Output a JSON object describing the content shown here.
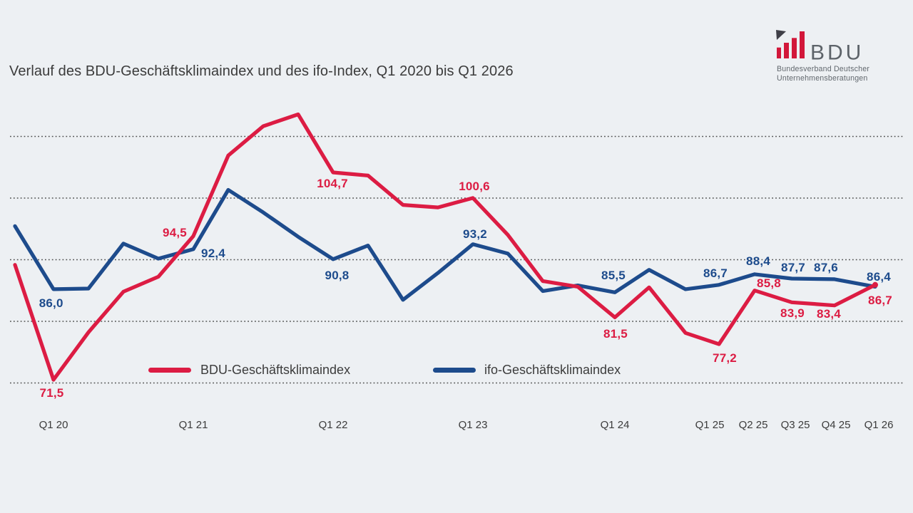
{
  "page": {
    "background_color": "#edf0f3"
  },
  "header": {
    "title": "Verlauf des BDU-Geschäftsklimaindex und des ifo-Index, Q1 2020 bis Q1 2026"
  },
  "logo": {
    "acronym": "BDU",
    "subtitle_line1": "Bundesverband Deutscher",
    "subtitle_line2": "Unternehmensberatungen",
    "bar_color": "#d2173a",
    "flag_color": "#3f3f47",
    "text_color": "#5d6369",
    "subtitle_color": "#62686e"
  },
  "legend": [
    {
      "label": "BDU-Geschäftsklimaindex",
      "color": "#dc1c43"
    },
    {
      "label": "ifo-Geschäftsklimaindex",
      "color": "#1d4b8c"
    }
  ],
  "chart_data": {
    "type": "line",
    "title": "Verlauf des BDU-Geschäftsklimaindex und des ifo-Index, Q1 2020 bis Q1 2026",
    "x_axis_labels": [
      "Q1 20",
      "Q1 21",
      "Q1 22",
      "Q1 23",
      "Q1 24",
      "Q1 25",
      "Q2 25",
      "Q3 25",
      "Q4 25",
      "Q1 26"
    ],
    "decimal_style": "comma",
    "gridlines": {
      "orientation": "horizontal",
      "style": "dotted",
      "count": 5
    },
    "series": [
      {
        "name": "BDU-Geschäftsklimaindex",
        "color": "#dc1c43",
        "points": [
          {
            "q": "Q4 19",
            "v": 89.9
          },
          {
            "q": "Q1 20",
            "v": 71.5,
            "label": "71,5"
          },
          {
            "q": "Q2 20",
            "v": 79.1
          },
          {
            "q": "Q3 20",
            "v": 85.6
          },
          {
            "q": "Q4 20",
            "v": 88.0
          },
          {
            "q": "Q1 21",
            "v": 94.5,
            "label": "94,5"
          },
          {
            "q": "Q2 21",
            "v": 107.4
          },
          {
            "q": "Q3 21",
            "v": 112.1
          },
          {
            "q": "Q4 21",
            "v": 114.0
          },
          {
            "q": "Q1 22",
            "v": 104.7,
            "label": "104,7"
          },
          {
            "q": "Q2 22",
            "v": 104.2
          },
          {
            "q": "Q3 22",
            "v": 99.5
          },
          {
            "q": "Q4 22",
            "v": 99.1
          },
          {
            "q": "Q1 23",
            "v": 100.6,
            "label": "100,6"
          },
          {
            "q": "Q2 23",
            "v": 94.7
          },
          {
            "q": "Q3 23",
            "v": 87.3
          },
          {
            "q": "Q4 23",
            "v": 86.4
          },
          {
            "q": "Q1 24",
            "v": 81.5,
            "label": "81,5"
          },
          {
            "q": "Q2 24",
            "v": 86.3
          },
          {
            "q": "Q3 24",
            "v": 79.0
          },
          {
            "q": "Q1 25",
            "v": 77.2,
            "label": "77,2"
          },
          {
            "q": "Q2 25",
            "v": 85.8,
            "label": "85,8"
          },
          {
            "q": "Q3 25",
            "v": 83.9,
            "label": "83,9"
          },
          {
            "q": "Q4 25",
            "v": 83.4,
            "label": "83,4"
          },
          {
            "q": "Q1 26",
            "v": 86.7,
            "label": "86,7"
          }
        ]
      },
      {
        "name": "ifo-Geschäftsklimaindex",
        "color": "#1d4b8c",
        "points": [
          {
            "q": "Q4 19",
            "v": 96.1
          },
          {
            "q": "Q1 20",
            "v": 86.0,
            "label": "86,0"
          },
          {
            "q": "Q2 20",
            "v": 86.1
          },
          {
            "q": "Q3 20",
            "v": 93.3
          },
          {
            "q": "Q4 20",
            "v": 90.9
          },
          {
            "q": "Q1 21",
            "v": 92.4,
            "label": "92,4"
          },
          {
            "q": "Q2 21",
            "v": 101.9
          },
          {
            "q": "Q3 21",
            "v": 98.3
          },
          {
            "q": "Q4 21",
            "v": 94.4
          },
          {
            "q": "Q1 22",
            "v": 90.8,
            "label": "90,8"
          },
          {
            "q": "Q2 22",
            "v": 93.0
          },
          {
            "q": "Q3 22",
            "v": 84.3
          },
          {
            "q": "Q4 22",
            "v": 88.6
          },
          {
            "q": "Q1 23",
            "v": 93.2,
            "label": "93,2"
          },
          {
            "q": "Q2 23",
            "v": 91.7
          },
          {
            "q": "Q3 23",
            "v": 85.7
          },
          {
            "q": "Q4 23",
            "v": 86.6
          },
          {
            "q": "Q1 24",
            "v": 85.5,
            "label": "85,5"
          },
          {
            "q": "Q2 24",
            "v": 89.1
          },
          {
            "q": "Q3 24",
            "v": 86.0
          },
          {
            "q": "Q1 25",
            "v": 86.7,
            "label": "86,7"
          },
          {
            "q": "Q2 25",
            "v": 88.4,
            "label": "88,4"
          },
          {
            "q": "Q3 25",
            "v": 87.7,
            "label": "87,7"
          },
          {
            "q": "Q4 25",
            "v": 87.6,
            "label": "87,6"
          },
          {
            "q": "Q1 26",
            "v": 86.4,
            "label": "86,4"
          }
        ]
      }
    ]
  }
}
